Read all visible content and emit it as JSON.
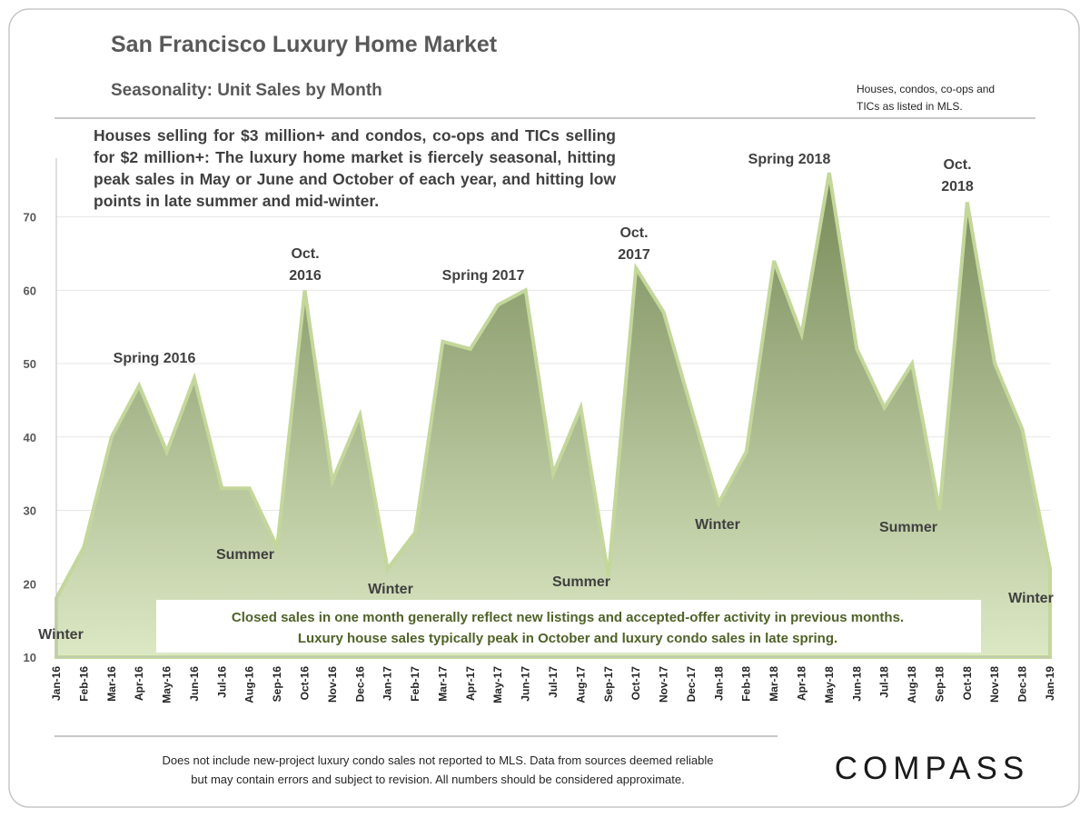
{
  "chart_data": {
    "type": "area",
    "title": "San Francisco Luxury Home Market",
    "subtitle": "Seasonality:  Unit Sales by Month",
    "note": [
      "Houses, condos, co-ops and",
      "TICs as listed in MLS."
    ],
    "description": "Houses selling for $3 million+ and condos, co-ops and TICs selling for $2 million+: The luxury home market is fiercely seasonal, hitting peak sales in May or June and October of each year, and hitting low points in late summer and mid-winter.",
    "callout": [
      "Closed sales in one month generally reflect new listings and accepted-offer activity in previous months.",
      "Luxury house sales typically peak in October and luxury condo sales in late spring."
    ],
    "footnote": [
      "Does not include new-project luxury condo sales not reported to MLS.  Data from sources deemed  reliable",
      "but may contain errors and subject to revision.  All numbers should be considered approximate."
    ],
    "logo": "COMPASS",
    "annotations": [
      [
        "Winter"
      ],
      [
        "Spring 2016"
      ],
      [
        "Summer"
      ],
      [
        "Oct.",
        "2016"
      ],
      [
        "Winter"
      ],
      [
        "Spring 2017"
      ],
      [
        "Summer"
      ],
      [
        "Oct.",
        "2017"
      ],
      [
        "Winter"
      ],
      [
        "Spring 2018"
      ],
      [
        "Summer"
      ],
      [
        "Oct.",
        "2018"
      ],
      [
        "Winter"
      ]
    ],
    "categories": [
      "Jan-16",
      "Feb-16",
      "Mar-16",
      "Apr-16",
      "May-16",
      "Jun-16",
      "Jul-16",
      "Aug-16",
      "Sep-16",
      "Oct-16",
      "Nov-16",
      "Dec-16",
      "Jan-17",
      "Feb-17",
      "Mar-17",
      "Apr-17",
      "May-17",
      "Jun-17",
      "Jul-17",
      "Aug-17",
      "Sep-17",
      "Oct-17",
      "Nov-17",
      "Dec-17",
      "Jan-18",
      "Feb-18",
      "Mar-18",
      "Apr-18",
      "May-18",
      "Jun-18",
      "Jul-18",
      "Aug-18",
      "Sep-18",
      "Oct-18",
      "Nov-18",
      "Dec-18",
      "Jan-19"
    ],
    "values": [
      18,
      25,
      40,
      47,
      38,
      48,
      33,
      33,
      25,
      60,
      34,
      43,
      22,
      27,
      53,
      52,
      58,
      60,
      35,
      44,
      21,
      63,
      57,
      44,
      31,
      38,
      64,
      54,
      76,
      52,
      44,
      50,
      30,
      72,
      50,
      41,
      22
    ],
    "color": "#c4d79b",
    "gradient": [
      "#778a58",
      "#dce8c4"
    ],
    "ylim": [
      10,
      78
    ],
    "yticks": [
      10,
      20,
      30,
      40,
      50,
      60,
      70
    ],
    "grid": true
  }
}
